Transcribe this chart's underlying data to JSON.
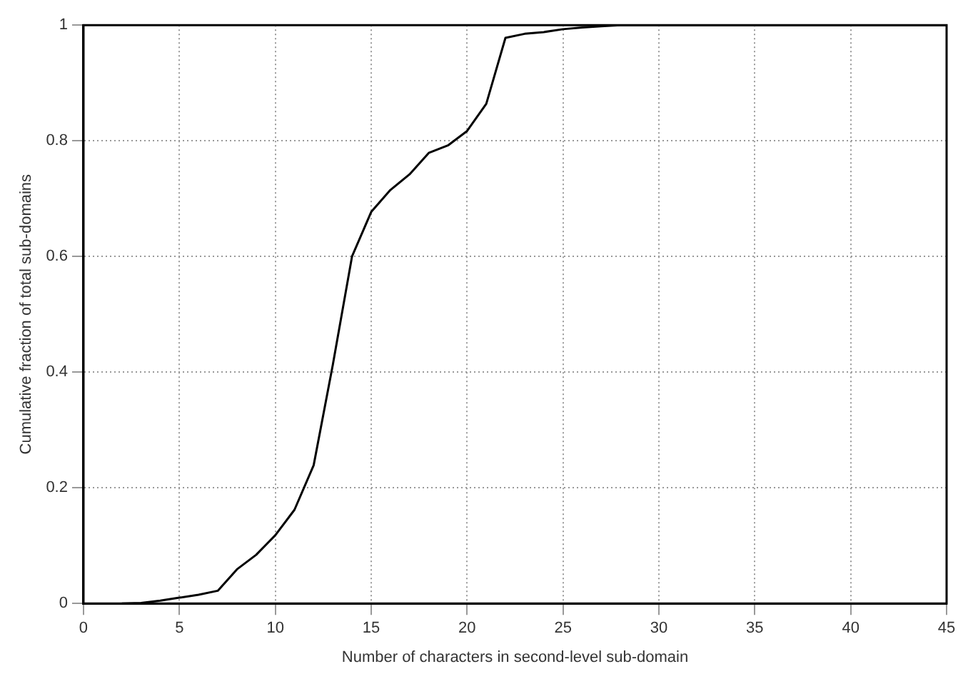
{
  "chart_data": {
    "type": "line",
    "xlabel": "Number of characters in second-level sub-domain",
    "ylabel": "Cumulative fraction of total sub-domains",
    "x": [
      2,
      3,
      4,
      5,
      6,
      7,
      8,
      9,
      10,
      11,
      12,
      13,
      14,
      15,
      16,
      17,
      18,
      19,
      20,
      21,
      22,
      23,
      24,
      25,
      26,
      27,
      28,
      30,
      35,
      40,
      45
    ],
    "series": [
      {
        "color": "#000000",
        "values": [
          0,
          0.001,
          0.005,
          0.01,
          0.015,
          0.022,
          0.059,
          0.084,
          0.118,
          0.162,
          0.239,
          0.413,
          0.6,
          0.677,
          0.715,
          0.742,
          0.779,
          0.792,
          0.817,
          0.864,
          0.978,
          0.985,
          0.988,
          0.993,
          0.996,
          0.998,
          1,
          1,
          1,
          1,
          1
        ]
      }
    ],
    "xlim": [
      0,
      45
    ],
    "xticks": [
      0,
      5,
      10,
      15,
      20,
      25,
      30,
      35,
      40,
      45
    ],
    "ylim": [
      0,
      1
    ],
    "yticks": [
      0,
      0.2,
      0.4,
      0.6,
      0.8,
      1
    ],
    "grid": true,
    "legend": false,
    "marker": "none",
    "line_style": "solid"
  }
}
